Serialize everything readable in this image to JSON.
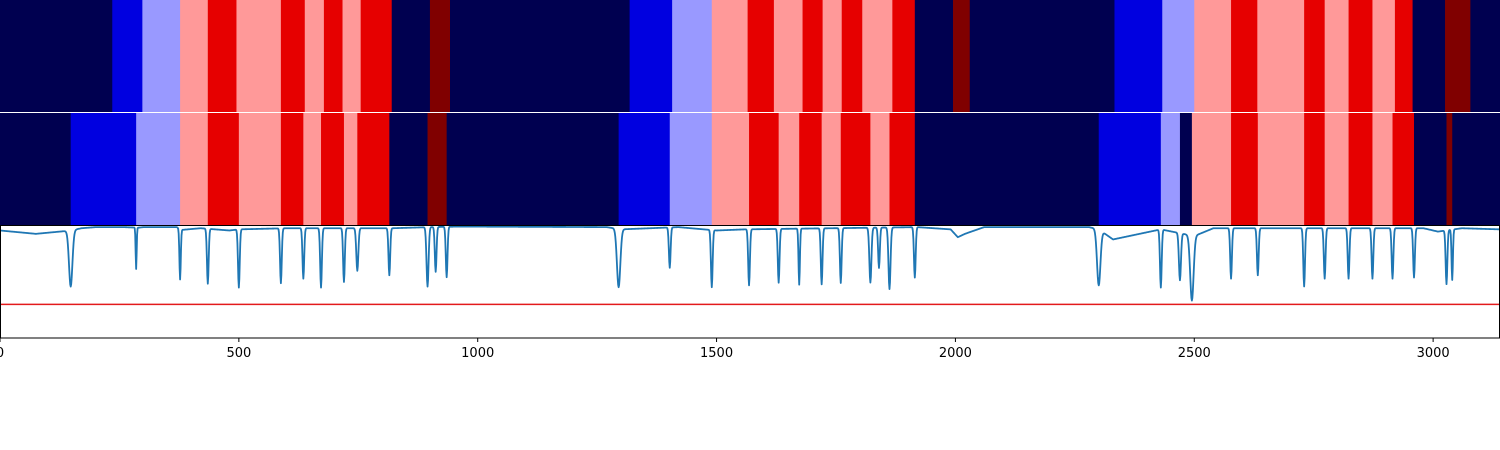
{
  "chart_data": {
    "type": "heatmap",
    "title": "",
    "xlabel": "",
    "ylabel": "",
    "xlim": [
      0,
      3140
    ],
    "xticks": [
      0,
      500,
      1000,
      1500,
      2000,
      2500,
      3000
    ],
    "xtick_labels": [
      "0",
      "500",
      "1000",
      "1500",
      "2000",
      "2500",
      "3000"
    ],
    "colormap": "seismic",
    "class_colors": {
      "0": "#000050",
      "1": "#0000e0",
      "2": "#9999ff",
      "3": "#ff9999",
      "4": "#e60000",
      "5": "#800000"
    },
    "rows": [
      {
        "name": "",
        "segments": [
          [
            0,
            235,
            0
          ],
          [
            235,
            298,
            1
          ],
          [
            298,
            377,
            2
          ],
          [
            377,
            435,
            3
          ],
          [
            435,
            495,
            4
          ],
          [
            495,
            588,
            3
          ],
          [
            588,
            638,
            4
          ],
          [
            638,
            678,
            3
          ],
          [
            678,
            717,
            4
          ],
          [
            717,
            755,
            3
          ],
          [
            755,
            820,
            4
          ],
          [
            820,
            900,
            0
          ],
          [
            900,
            942,
            5
          ],
          [
            942,
            1318,
            0
          ],
          [
            1318,
            1407,
            1
          ],
          [
            1407,
            1490,
            2
          ],
          [
            1490,
            1565,
            3
          ],
          [
            1565,
            1620,
            4
          ],
          [
            1620,
            1680,
            3
          ],
          [
            1680,
            1722,
            4
          ],
          [
            1722,
            1762,
            3
          ],
          [
            1762,
            1805,
            4
          ],
          [
            1805,
            1868,
            3
          ],
          [
            1868,
            1915,
            4
          ],
          [
            1915,
            1995,
            0
          ],
          [
            1995,
            2030,
            5
          ],
          [
            2030,
            2333,
            0
          ],
          [
            2333,
            2433,
            1
          ],
          [
            2433,
            2500,
            2
          ],
          [
            2500,
            2577,
            3
          ],
          [
            2577,
            2632,
            4
          ],
          [
            2632,
            2730,
            3
          ],
          [
            2730,
            2773,
            4
          ],
          [
            2773,
            2823,
            3
          ],
          [
            2823,
            2873,
            4
          ],
          [
            2873,
            2920,
            3
          ],
          [
            2920,
            2957,
            4
          ],
          [
            2957,
            3025,
            0
          ],
          [
            3025,
            3078,
            5
          ],
          [
            3078,
            3140,
            0
          ]
        ]
      },
      {
        "name": "",
        "segments": [
          [
            0,
            148,
            0
          ],
          [
            148,
            285,
            1
          ],
          [
            285,
            377,
            2
          ],
          [
            377,
            435,
            3
          ],
          [
            435,
            500,
            4
          ],
          [
            500,
            588,
            3
          ],
          [
            588,
            635,
            4
          ],
          [
            635,
            672,
            3
          ],
          [
            672,
            720,
            4
          ],
          [
            720,
            748,
            3
          ],
          [
            748,
            815,
            4
          ],
          [
            815,
            895,
            0
          ],
          [
            895,
            935,
            5
          ],
          [
            935,
            1295,
            0
          ],
          [
            1295,
            1402,
            1
          ],
          [
            1402,
            1490,
            2
          ],
          [
            1490,
            1568,
            3
          ],
          [
            1568,
            1630,
            4
          ],
          [
            1630,
            1673,
            3
          ],
          [
            1673,
            1720,
            4
          ],
          [
            1720,
            1760,
            3
          ],
          [
            1760,
            1822,
            4
          ],
          [
            1822,
            1862,
            3
          ],
          [
            1862,
            1915,
            4
          ],
          [
            1915,
            2300,
            0
          ],
          [
            2300,
            2430,
            1
          ],
          [
            2430,
            2470,
            2
          ],
          [
            2470,
            2495,
            0
          ],
          [
            2495,
            2577,
            3
          ],
          [
            2577,
            2633,
            4
          ],
          [
            2633,
            2730,
            3
          ],
          [
            2730,
            2773,
            4
          ],
          [
            2773,
            2823,
            3
          ],
          [
            2823,
            2873,
            4
          ],
          [
            2873,
            2915,
            3
          ],
          [
            2915,
            2960,
            4
          ],
          [
            2960,
            3028,
            0
          ],
          [
            3028,
            3040,
            5
          ],
          [
            3040,
            3140,
            0
          ]
        ]
      }
    ],
    "line": {
      "color": "#1f77b4",
      "ylim": [
        0,
        1
      ],
      "threshold": 0.3,
      "threshold_color": "#e31a1c",
      "baseline": [
        [
          0,
          0.96
        ],
        [
          75,
          0.93
        ],
        [
          150,
          0.96
        ],
        [
          170,
          0.98
        ],
        [
          200,
          0.99
        ],
        [
          260,
          0.99
        ],
        [
          290,
          0.985
        ],
        [
          300,
          0.99
        ],
        [
          370,
          0.99
        ],
        [
          380,
          0.965
        ],
        [
          420,
          0.98
        ],
        [
          480,
          0.96
        ],
        [
          500,
          0.97
        ],
        [
          600,
          0.98
        ],
        [
          820,
          0.98
        ],
        [
          900,
          0.99
        ],
        [
          960,
          0.995
        ],
        [
          1270,
          0.99
        ],
        [
          1300,
          0.97
        ],
        [
          1420,
          0.99
        ],
        [
          1500,
          0.96
        ],
        [
          1560,
          0.97
        ],
        [
          1920,
          0.99
        ],
        [
          1990,
          0.97
        ],
        [
          2005,
          0.9
        ],
        [
          2020,
          0.93
        ],
        [
          2060,
          0.99
        ],
        [
          2280,
          0.99
        ],
        [
          2300,
          0.97
        ],
        [
          2330,
          0.88
        ],
        [
          2430,
          0.97
        ],
        [
          2500,
          0.91
        ],
        [
          2540,
          0.98
        ],
        [
          2980,
          0.98
        ],
        [
          3010,
          0.95
        ],
        [
          3060,
          0.98
        ],
        [
          3140,
          0.97
        ]
      ],
      "dips": [
        [
          148,
          0.5,
          5
        ],
        [
          285,
          0.37,
          1.5
        ],
        [
          377,
          0.45,
          2
        ],
        [
          435,
          0.49,
          2.5
        ],
        [
          500,
          0.52,
          2.5
        ],
        [
          588,
          0.49,
          2.5
        ],
        [
          635,
          0.45,
          2.5
        ],
        [
          672,
          0.53,
          2.5
        ],
        [
          720,
          0.48,
          2.5
        ],
        [
          748,
          0.38,
          3
        ],
        [
          815,
          0.42,
          2.5
        ],
        [
          895,
          0.53,
          3
        ],
        [
          912,
          0.4,
          2.5
        ],
        [
          935,
          0.45,
          2.5
        ],
        [
          1295,
          0.52,
          5
        ],
        [
          1402,
          0.36,
          2.5
        ],
        [
          1490,
          0.51,
          2.5
        ],
        [
          1568,
          0.5,
          2.5
        ],
        [
          1630,
          0.48,
          2.5
        ],
        [
          1673,
          0.5,
          2
        ],
        [
          1720,
          0.5,
          2.5
        ],
        [
          1760,
          0.49,
          2.5
        ],
        [
          1822,
          0.49,
          3
        ],
        [
          1840,
          0.36,
          2.5
        ],
        [
          1862,
          0.55,
          3
        ],
        [
          1915,
          0.45,
          2.5
        ],
        [
          2300,
          0.5,
          5
        ],
        [
          2430,
          0.52,
          2.5
        ],
        [
          2470,
          0.42,
          3
        ],
        [
          2495,
          0.58,
          5
        ],
        [
          2577,
          0.45,
          2.5
        ],
        [
          2633,
          0.42,
          2.5
        ],
        [
          2730,
          0.52,
          2.5
        ],
        [
          2773,
          0.45,
          2.5
        ],
        [
          2823,
          0.45,
          2.5
        ],
        [
          2873,
          0.45,
          2.5
        ],
        [
          2915,
          0.45,
          2.5
        ],
        [
          2960,
          0.44,
          2.5
        ],
        [
          3028,
          0.48,
          2.5
        ],
        [
          3040,
          0.45,
          2
        ]
      ],
      "extreme_points": [
        [
          2495,
          0.3
        ],
        [
          2490,
          0.38
        ]
      ]
    }
  }
}
